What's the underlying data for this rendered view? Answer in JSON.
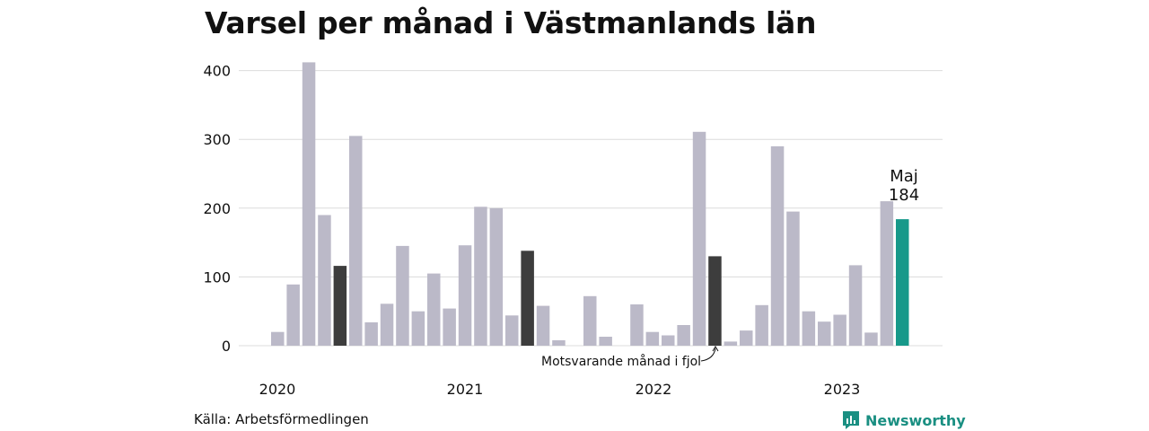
{
  "chart_data": {
    "type": "bar",
    "title": "Varsel per månad i Västmanlands län",
    "ylim": [
      0,
      420
    ],
    "yticks": [
      "0",
      "100",
      "200",
      "300",
      "400"
    ],
    "year_labels": [
      "2020",
      "2021",
      "2022",
      "2023"
    ],
    "values": [
      20,
      89,
      412,
      190,
      116,
      305,
      34,
      61,
      145,
      50,
      105,
      54,
      146,
      202,
      200,
      44,
      138,
      58,
      8,
      0,
      72,
      13,
      0,
      60,
      20,
      15,
      30,
      311,
      130,
      6,
      22,
      59,
      290,
      195,
      50,
      35,
      45,
      117,
      19,
      210,
      184
    ],
    "highlight_months": [
      4,
      16,
      28
    ],
    "current_month": 40,
    "callout": {
      "month": "Maj",
      "value": "184"
    },
    "annotation": "Motsvarande månad i fjol",
    "colors": {
      "default": "#bbb9c8",
      "highlight": "#3d3d3d",
      "current": "#17998a",
      "grid": "#dcdcdc"
    },
    "grid": true
  },
  "footer": {
    "source": "Källa: Arbetsförmedlingen",
    "brand": "Newsworthy",
    "brand_icon": "bar-chart-logo-icon"
  }
}
